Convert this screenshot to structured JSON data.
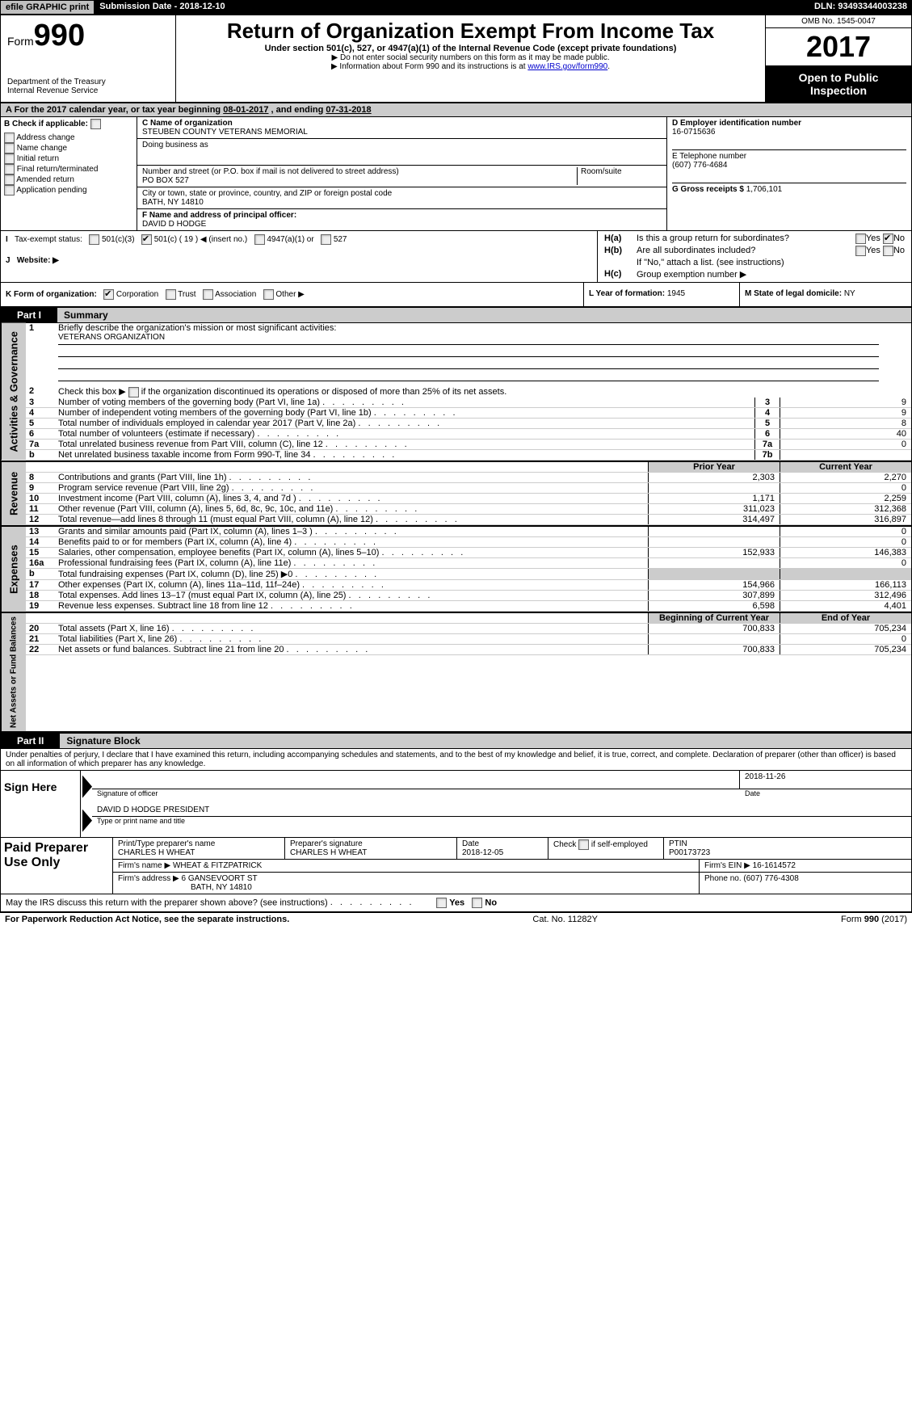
{
  "topbar": {
    "efile": "efile GRAPHIC print",
    "submission_label": "Submission Date - ",
    "submission_date": "2018-12-10",
    "dln_label": "DLN: ",
    "dln": "93493344003238"
  },
  "header": {
    "form_text": "Form",
    "form_num": "990",
    "dept": "Department of the Treasury",
    "irs": "Internal Revenue Service",
    "title": "Return of Organization Exempt From Income Tax",
    "subtitle": "Under section 501(c), 527, or 4947(a)(1) of the Internal Revenue Code (except private foundations)",
    "note1": "▶ Do not enter social security numbers on this form as it may be made public.",
    "note2_pre": "▶ Information about Form 990 and its instructions is at ",
    "note2_link": "www.IRS.gov/form990",
    "omb_label": "OMB No. ",
    "omb": "1545-0047",
    "year": "2017",
    "open": "Open to Public Inspection"
  },
  "sectionA": {
    "a_text_pre": "A  For the 2017 calendar year, or tax year beginning ",
    "a_begin": "08-01-2017",
    "a_mid": " , and ending ",
    "a_end": "07-31-2018",
    "b_label": "B Check if applicable:",
    "b_items": [
      "Address change",
      "Name change",
      "Initial return",
      "Final return/terminated",
      "Amended return",
      "Application pending"
    ],
    "c_name_label": "C Name of organization",
    "c_name": "STEUBEN COUNTY VETERANS MEMORIAL",
    "dba_label": "Doing business as",
    "dba": "",
    "addr_label": "Number and street (or P.O. box if mail is not delivered to street address)",
    "addr": "PO BOX 527",
    "room_label": "Room/suite",
    "city_label": "City or town, state or province, country, and ZIP or foreign postal code",
    "city": "BATH, NY  14810",
    "f_label": "F Name and address of principal officer:",
    "f_name": "DAVID D HODGE",
    "d_label": "D Employer identification number",
    "d_val": "16-0715636",
    "e_label": "E Telephone number",
    "e_val": "(607) 776-4684",
    "g_label": "G Gross receipts $ ",
    "g_val": "1,706,101",
    "ha_label": "H(a)",
    "ha_text": "Is this a group return for subordinates?",
    "hb_label": "H(b)",
    "hb_text": "Are all subordinates included?",
    "hb_note": "If \"No,\" attach a list. (see instructions)",
    "hc_label": "H(c)",
    "hc_text": "Group exemption number ▶",
    "yes": "Yes",
    "no": "No",
    "i_label": "I",
    "i_text": "Tax-exempt status:",
    "i_501c3": "501(c)(3)",
    "i_501c": "501(c) ( 19 ) ◀ (insert no.)",
    "i_4947": "4947(a)(1) or",
    "i_527": "527",
    "j_label": "J",
    "j_text": "Website: ▶",
    "k_label": "K Form of organization:",
    "k_corp": "Corporation",
    "k_trust": "Trust",
    "k_assoc": "Association",
    "k_other": "Other ▶",
    "l_label": "L Year of formation: ",
    "l_val": "1945",
    "m_label": "M State of legal domicile: ",
    "m_val": "NY"
  },
  "part1": {
    "label": "Part I",
    "title": "Summary",
    "l1_text": "Briefly describe the organization's mission or most significant activities:",
    "l1_val": "VETERANS ORGANIZATION",
    "l2_text": "Check this box ▶       if the organization discontinued its operations or disposed of more than 25% of its net assets.",
    "lines_single": [
      {
        "n": "3",
        "text": "Number of voting members of the governing body (Part VI, line 1a)",
        "box": "3",
        "val": "9"
      },
      {
        "n": "4",
        "text": "Number of independent voting members of the governing body (Part VI, line 1b)",
        "box": "4",
        "val": "9"
      },
      {
        "n": "5",
        "text": "Total number of individuals employed in calendar year 2017 (Part V, line 2a)",
        "box": "5",
        "val": "8"
      },
      {
        "n": "6",
        "text": "Total number of volunteers (estimate if necessary)",
        "box": "6",
        "val": "40"
      },
      {
        "n": "7a",
        "text": "Total unrelated business revenue from Part VIII, column (C), line 12",
        "box": "7a",
        "val": "0"
      },
      {
        "n": "b",
        "text": "Net unrelated business taxable income from Form 990-T, line 34",
        "box": "7b",
        "val": ""
      }
    ],
    "col_prior": "Prior Year",
    "col_current": "Current Year",
    "revenue_lines": [
      {
        "n": "8",
        "text": "Contributions and grants (Part VIII, line 1h)",
        "prior": "2,303",
        "curr": "2,270"
      },
      {
        "n": "9",
        "text": "Program service revenue (Part VIII, line 2g)",
        "prior": "",
        "curr": "0"
      },
      {
        "n": "10",
        "text": "Investment income (Part VIII, column (A), lines 3, 4, and 7d )",
        "prior": "1,171",
        "curr": "2,259"
      },
      {
        "n": "11",
        "text": "Other revenue (Part VIII, column (A), lines 5, 6d, 8c, 9c, 10c, and 11e)",
        "prior": "311,023",
        "curr": "312,368"
      },
      {
        "n": "12",
        "text": "Total revenue—add lines 8 through 11 (must equal Part VIII, column (A), line 12)",
        "prior": "314,497",
        "curr": "316,897"
      }
    ],
    "expense_lines": [
      {
        "n": "13",
        "text": "Grants and similar amounts paid (Part IX, column (A), lines 1–3 )",
        "prior": "",
        "curr": "0"
      },
      {
        "n": "14",
        "text": "Benefits paid to or for members (Part IX, column (A), line 4)",
        "prior": "",
        "curr": "0"
      },
      {
        "n": "15",
        "text": "Salaries, other compensation, employee benefits (Part IX, column (A), lines 5–10)",
        "prior": "152,933",
        "curr": "146,383"
      },
      {
        "n": "16a",
        "text": "Professional fundraising fees (Part IX, column (A), line 11e)",
        "prior": "",
        "curr": "0"
      },
      {
        "n": "b",
        "text": "Total fundraising expenses (Part IX, column (D), line 25) ▶0",
        "prior": "GREY",
        "curr": "GREY"
      },
      {
        "n": "17",
        "text": "Other expenses (Part IX, column (A), lines 11a–11d, 11f–24e)",
        "prior": "154,966",
        "curr": "166,113"
      },
      {
        "n": "18",
        "text": "Total expenses. Add lines 13–17 (must equal Part IX, column (A), line 25)",
        "prior": "307,899",
        "curr": "312,496"
      },
      {
        "n": "19",
        "text": "Revenue less expenses. Subtract line 18 from line 12",
        "prior": "6,598",
        "curr": "4,401"
      }
    ],
    "col_begin": "Beginning of Current Year",
    "col_end": "End of Year",
    "net_lines": [
      {
        "n": "20",
        "text": "Total assets (Part X, line 16)",
        "prior": "700,833",
        "curr": "705,234"
      },
      {
        "n": "21",
        "text": "Total liabilities (Part X, line 26)",
        "prior": "",
        "curr": "0"
      },
      {
        "n": "22",
        "text": "Net assets or fund balances. Subtract line 21 from line 20",
        "prior": "700,833",
        "curr": "705,234"
      }
    ],
    "side_gov": "Activities & Governance",
    "side_rev": "Revenue",
    "side_exp": "Expenses",
    "side_net": "Net Assets or Fund Balances"
  },
  "part2": {
    "label": "Part II",
    "title": "Signature Block",
    "penalties": "Under penalties of perjury, I declare that I have examined this return, including accompanying schedules and statements, and to the best of my knowledge and belief, it is true, correct, and complete. Declaration of preparer (other than officer) is based on all information of which preparer has any knowledge.",
    "sign_here": "Sign Here",
    "sig_officer": "Signature of officer",
    "sig_date": "2018-11-26",
    "sig_date_label": "Date",
    "sig_name": "DAVID D HODGE  PRESIDENT",
    "sig_name_label": "Type or print name and title",
    "paid": "Paid Preparer Use Only",
    "prep_name_label": "Print/Type preparer's name",
    "prep_name": "CHARLES H WHEAT",
    "prep_sig_label": "Preparer's signature",
    "prep_sig": "CHARLES H WHEAT",
    "prep_date_label": "Date",
    "prep_date": "2018-12-05",
    "check_self": "Check         if self-employed",
    "ptin_label": "PTIN",
    "ptin": "P00173723",
    "firm_name_label": "Firm's name    ▶ ",
    "firm_name": "WHEAT & FITZPATRICK",
    "firm_ein_label": "Firm's EIN ▶ ",
    "firm_ein": "16-1614572",
    "firm_addr_label": "Firm's address ▶ ",
    "firm_addr1": "6 GANSEVOORT ST",
    "firm_addr2": "BATH, NY  14810",
    "firm_phone_label": "Phone no. ",
    "firm_phone": "(607) 776-4308",
    "may_irs": "May the IRS discuss this return with the preparer shown above? (see instructions)",
    "paperwork": "For Paperwork Reduction Act Notice, see the separate instructions.",
    "catno": "Cat. No. 11282Y",
    "formfoot": "Form 990 (2017)"
  }
}
